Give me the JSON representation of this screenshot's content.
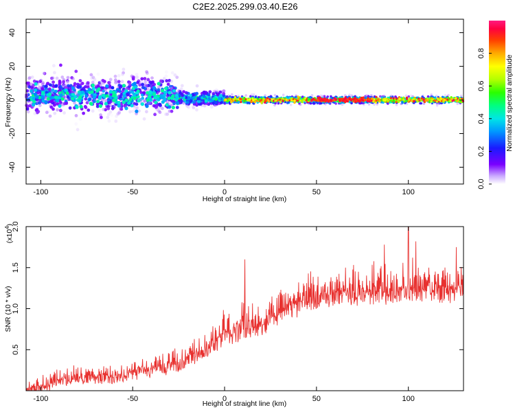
{
  "title": "C2E2.2025.299.03.40.E26",
  "colors": {
    "snr_line": "#e8312f",
    "axis": "#000000",
    "background": "#ffffff"
  },
  "chart_data": [
    {
      "type": "heatmap",
      "name": "spectrogram",
      "xlabel": "Height of straight line (km)",
      "ylabel": "Frequency (Hz)",
      "xlim": [
        -108,
        130
      ],
      "ylim": [
        -50,
        48
      ],
      "x_ticks": [
        -100,
        -50,
        0,
        50,
        100
      ],
      "y_ticks": [
        -40,
        -20,
        0,
        20,
        40
      ],
      "colorbar": {
        "label": "Normalized spectral amplitude",
        "range": [
          0,
          1
        ],
        "ticks": [
          0.0,
          0.2,
          0.4,
          0.6,
          0.8
        ],
        "tick_labels": [
          "0.0",
          "0.2",
          "0.4",
          "0.6",
          "0.8"
        ]
      },
      "description_regions": [
        {
          "x_range": [
            -108,
            -25
          ],
          "freq_center": 3,
          "freq_spread": 10,
          "amplitude": [
            0.05,
            0.45
          ]
        },
        {
          "x_range": [
            -25,
            0
          ],
          "freq_center": 1,
          "freq_spread": 4,
          "amplitude": [
            0.2,
            0.6
          ]
        },
        {
          "x_range": [
            0,
            130
          ],
          "freq_center": 0,
          "freq_spread": 2,
          "amplitude": [
            0.4,
            0.95
          ]
        }
      ]
    },
    {
      "type": "line",
      "name": "snr",
      "xlabel": "Height of straight line (km)",
      "ylabel": "SNR (10 * v/v)",
      "y_multiplier": "(x10 4)",
      "multiplier_base": "(x10",
      "multiplier_exp": "4",
      "multiplier_close": ")",
      "xlim": [
        -108,
        130
      ],
      "ylim": [
        0,
        2.0
      ],
      "x_ticks": [
        -100,
        -50,
        0,
        50,
        100
      ],
      "y_ticks": [
        0.5,
        1.0,
        1.5,
        2.0
      ],
      "y_tick_labels": [
        "0.5",
        "1.0",
        "1.5",
        "2.0"
      ],
      "series": [
        {
          "name": "SNR",
          "trend_x": [
            -108,
            -100,
            -90,
            -75,
            -60,
            -45,
            -35,
            -25,
            -15,
            -5,
            0,
            10,
            20,
            30,
            40,
            50,
            60,
            70,
            80,
            90,
            100,
            110,
            120,
            130
          ],
          "trend_y": [
            0.03,
            0.08,
            0.18,
            0.2,
            0.2,
            0.3,
            0.32,
            0.38,
            0.5,
            0.65,
            0.75,
            0.85,
            0.9,
            1.05,
            1.18,
            1.23,
            1.25,
            1.27,
            1.28,
            1.3,
            1.33,
            1.32,
            1.3,
            1.32
          ],
          "noise_amplitude": 0.3,
          "peaks": [
            {
              "x": 11,
              "y": 1.6
            },
            {
              "x": 87,
              "y": 1.78
            },
            {
              "x": 100,
              "y": 2.0
            },
            {
              "x": 104,
              "y": 1.82
            },
            {
              "x": 126,
              "y": 1.75
            }
          ]
        }
      ]
    }
  ]
}
